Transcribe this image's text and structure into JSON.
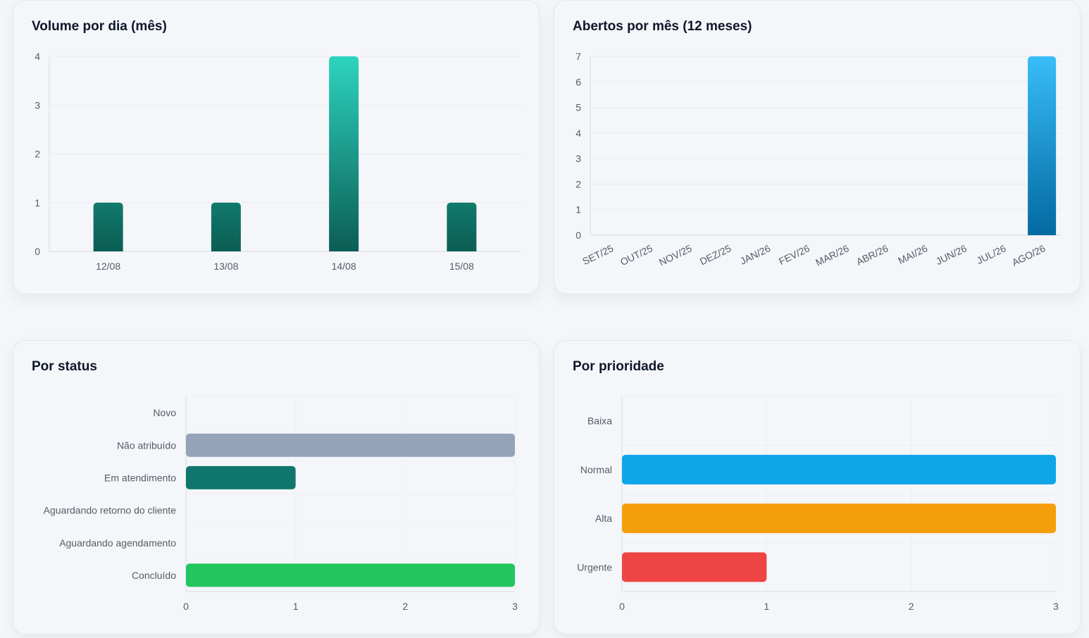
{
  "chart_data": [
    {
      "type": "bar",
      "title": "Volume por dia (mês)",
      "categories": [
        "12/08",
        "13/08",
        "14/08",
        "15/08"
      ],
      "values": [
        1,
        1,
        4,
        1
      ],
      "ylim": [
        0,
        4
      ],
      "yticks": [
        "0",
        "1",
        "2",
        "3",
        "4"
      ],
      "grid": true,
      "colors": {
        "top_peak": "#2dd4bf",
        "top": "#117a6c",
        "bottom": "#0b5d55"
      }
    },
    {
      "type": "bar",
      "title": "Abertos por mês (12 meses)",
      "categories": [
        "SET/25",
        "OUT/25",
        "NOV/25",
        "DEZ/25",
        "JAN/26",
        "FEV/26",
        "MAR/26",
        "ABR/26",
        "MAI/26",
        "JUN/26",
        "JUL/26",
        "AGO/26"
      ],
      "values": [
        0,
        0,
        0,
        0,
        0,
        0,
        0,
        0,
        0,
        0,
        0,
        7
      ],
      "ylim": [
        0,
        7
      ],
      "yticks": [
        "0",
        "1",
        "2",
        "3",
        "4",
        "5",
        "6",
        "7"
      ],
      "grid": true,
      "colors": {
        "top": "#38bdf8",
        "bottom": "#0369a1"
      }
    },
    {
      "type": "bar",
      "orientation": "horizontal",
      "title": "Por status",
      "categories": [
        "Novo",
        "Não atribuído",
        "Em atendimento",
        "Aguardando retorno do cliente",
        "Aguardando agendamento",
        "Concluído"
      ],
      "values": [
        0,
        3,
        1,
        0,
        0,
        3
      ],
      "xlim": [
        0,
        3
      ],
      "xticks": [
        "0",
        "1",
        "2",
        "3"
      ],
      "grid": true,
      "colors": [
        "#94a3b8",
        "#94a3b8",
        "#0f766e",
        "#94a3b8",
        "#94a3b8",
        "#22c55e"
      ]
    },
    {
      "type": "bar",
      "orientation": "horizontal",
      "title": "Por prioridade",
      "categories": [
        "Baixa",
        "Normal",
        "Alta",
        "Urgente"
      ],
      "values": [
        0,
        3,
        3,
        1
      ],
      "xlim": [
        0,
        3
      ],
      "xticks": [
        "0",
        "1",
        "2",
        "3"
      ],
      "grid": true,
      "colors": [
        "#94a3b8",
        "#0ea5e9",
        "#f59e0b",
        "#ef4444"
      ]
    }
  ]
}
